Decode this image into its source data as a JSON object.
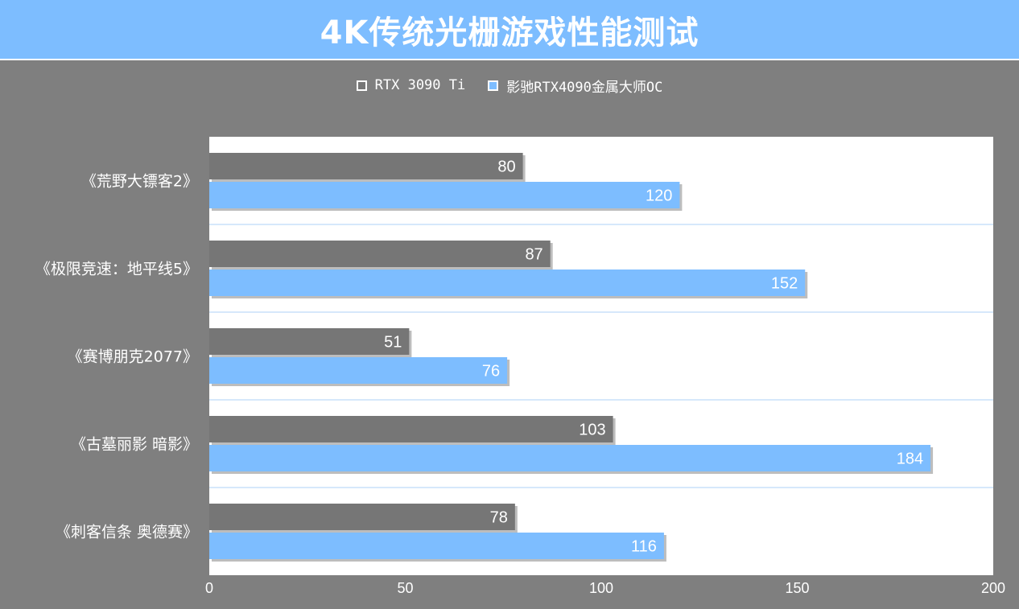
{
  "page": {
    "title": "4K传统光栅游戏性能测试"
  },
  "colors": {
    "background": "#7f7f7f",
    "title_bar": "#7dbdff",
    "series_1": "#767676",
    "series_2": "#7dbdff",
    "plot_area": "#ffffff",
    "gridline": "#d6e8fb"
  },
  "chart_data": {
    "type": "bar",
    "orientation": "horizontal",
    "title": "4K传统光栅游戏性能测试",
    "categories": [
      "《荒野大镖客2》",
      "《极限竞速：地平线5》",
      "《赛博朋克2077》",
      "《古墓丽影 暗影》",
      "《刺客信条 奥德赛》"
    ],
    "series": [
      {
        "name": "RTX 3090 Ti",
        "values": [
          80,
          87,
          51,
          103,
          78
        ]
      },
      {
        "name": "影驰RTX4090金属大师OC",
        "values": [
          120,
          152,
          76,
          184,
          116
        ]
      }
    ],
    "xlim": [
      0,
      200
    ],
    "x_ticks": [
      "0",
      "50",
      "100",
      "150",
      "200"
    ],
    "grid": "horizontal separators",
    "legend_position": "top-center",
    "data_labels": "inside-end"
  }
}
